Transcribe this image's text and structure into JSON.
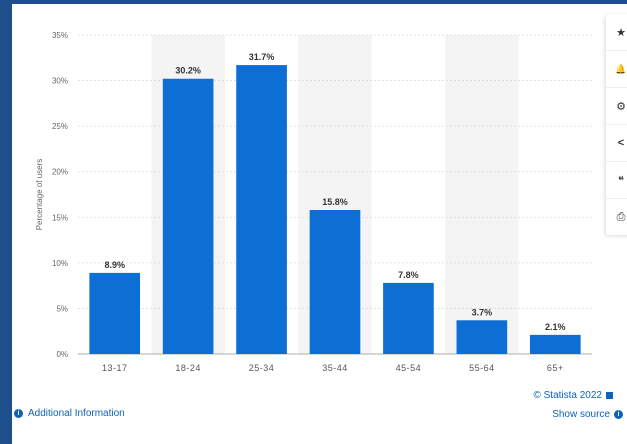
{
  "chart_data": {
    "type": "bar",
    "categories": [
      "13-17",
      "18-24",
      "25-34",
      "35-44",
      "45-54",
      "55-64",
      "65+"
    ],
    "values": [
      8.9,
      30.2,
      31.7,
      15.8,
      7.8,
      3.7,
      2.1
    ],
    "value_labels": [
      "8.9%",
      "30.2%",
      "31.7%",
      "15.8%",
      "7.8%",
      "3.7%",
      "2.1%"
    ],
    "ylabel": "Percentage of users",
    "xlabel": "",
    "ylim": [
      0,
      35
    ],
    "yticks": [
      0,
      5,
      10,
      15,
      20,
      25,
      30,
      35
    ],
    "ytick_labels": [
      "0%",
      "5%",
      "10%",
      "15%",
      "20%",
      "25%",
      "30%",
      "35%"
    ],
    "bar_color": "#0d6fd6",
    "grid": true,
    "alternating_band_color": "#f4f4f4"
  },
  "toolbar": {
    "items": [
      {
        "name": "favorite",
        "glyph": "★"
      },
      {
        "name": "notification",
        "glyph": "🔔"
      },
      {
        "name": "settings",
        "glyph": "⚙"
      },
      {
        "name": "share",
        "glyph": "<"
      },
      {
        "name": "cite",
        "glyph": "❝"
      },
      {
        "name": "print",
        "glyph": "⎙"
      }
    ]
  },
  "footer": {
    "additional_info": "Additional Information",
    "copyright": "© Statista 2022",
    "show_source": "Show source"
  }
}
